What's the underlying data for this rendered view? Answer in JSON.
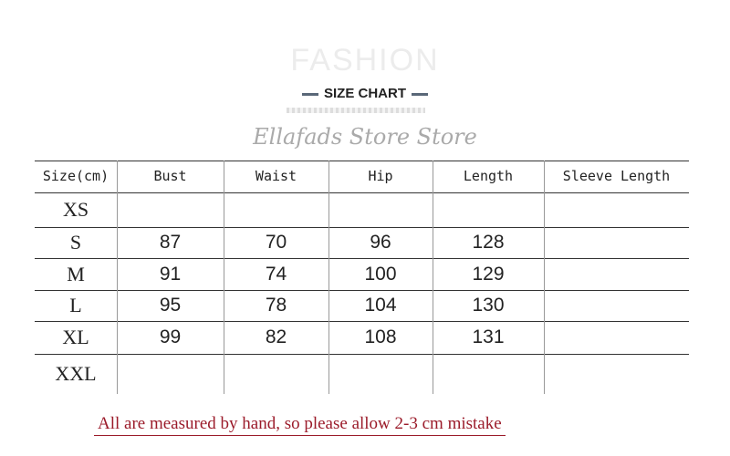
{
  "header": {
    "watermark": "FASHION",
    "title": "SIZE CHART",
    "store": "Ellafads Store Store"
  },
  "table": {
    "columns": [
      "Size(cm)",
      "Bust",
      "Waist",
      "Hip",
      "Length",
      "Sleeve Length"
    ],
    "rows": [
      [
        "XS",
        "",
        "",
        "",
        "",
        ""
      ],
      [
        "S",
        "87",
        "70",
        "96",
        "128",
        ""
      ],
      [
        "M",
        "91",
        "74",
        "100",
        "129",
        ""
      ],
      [
        "L",
        "95",
        "78",
        "104",
        "130",
        ""
      ],
      [
        "XL",
        "99",
        "82",
        "108",
        "131",
        ""
      ],
      [
        "XXL",
        "",
        "",
        "",
        "",
        ""
      ]
    ]
  },
  "note": "All are measured by hand, so please allow 2-3 cm mistake",
  "colors": {
    "note": "#9b1b2a",
    "dash": "#5a6878"
  }
}
